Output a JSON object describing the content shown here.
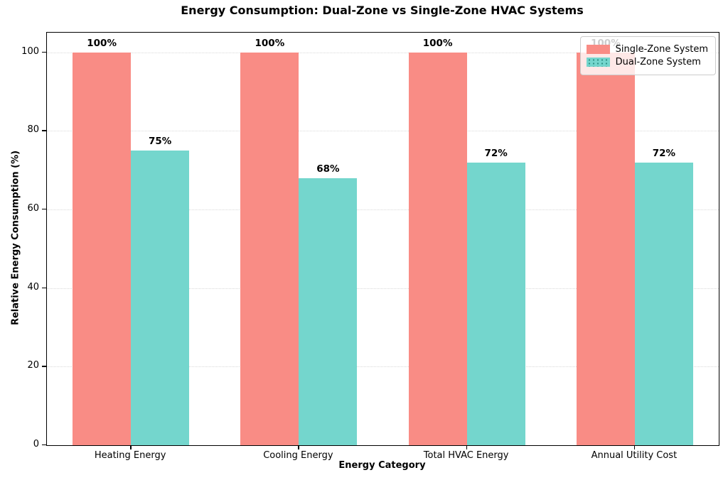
{
  "title": "Energy Consumption: Dual-Zone vs Single-Zone HVAC Systems",
  "colors": {
    "single_zone": "#F98C85",
    "dual_zone": "#74D6CD",
    "gridline": "#D9D9D9",
    "spine": "#000000",
    "legend_background": "rgba(255,255,255,0.8)"
  },
  "chart_data": {
    "type": "bar",
    "title": "Energy Consumption: Dual-Zone vs Single-Zone HVAC Systems",
    "xlabel": "Energy Category",
    "ylabel": "Relative Energy Consumption (%)",
    "categories": [
      "Heating Energy",
      "Cooling Energy",
      "Total HVAC Energy",
      "Annual Utility Cost"
    ],
    "series": [
      {
        "name": "Single-Zone System",
        "color": "#F98C85",
        "values": [
          100,
          100,
          100,
          100
        ],
        "labels": [
          "100%",
          "100%",
          "100%",
          "100%"
        ]
      },
      {
        "name": "Dual-Zone System",
        "color": "#74D6CD",
        "values": [
          75,
          68,
          72,
          72
        ],
        "labels": [
          "75%",
          "68%",
          "72%",
          "72%"
        ]
      }
    ],
    "ylim": [
      0,
      105
    ],
    "yticks": [
      0,
      20,
      40,
      60,
      80,
      100
    ],
    "grid": "horizontal-dotted",
    "legend_position": "upper-right"
  }
}
